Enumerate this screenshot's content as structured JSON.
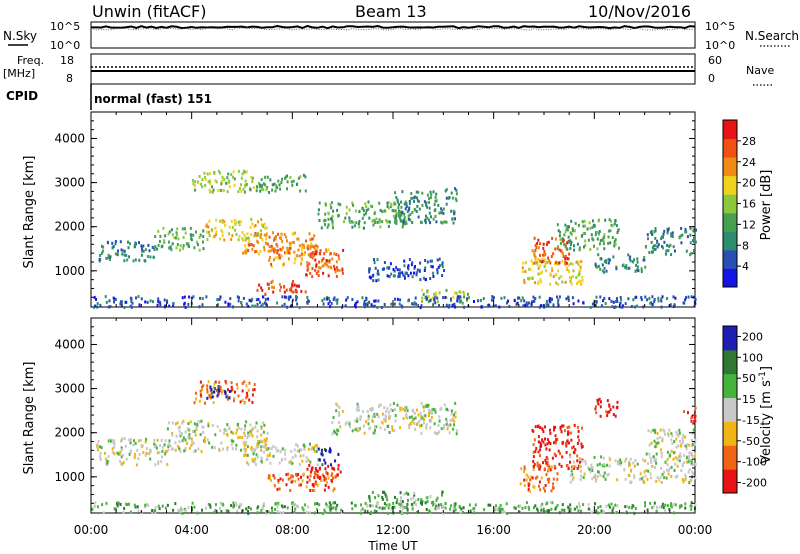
{
  "header": {
    "title": "Unwin (fitACF)",
    "beam": "Beam 13",
    "date": "10/Nov/2016"
  },
  "top_panels": {
    "nsky_label": "N.Sky",
    "nsky_tick_top": "10^5",
    "nsky_tick_bottom": "10^0",
    "nsearch_label": "N.Search",
    "freq_label": "Freq.",
    "freq_unit": "[MHz]",
    "freq_tick_top": "18",
    "freq_tick_bottom": "8",
    "nave_label": "Nave",
    "nave_tick_top": "60",
    "nave_tick_bottom": "0",
    "cpid_label": "CPID",
    "cpid_value": "normal (fast) 151"
  },
  "colors": {
    "power": [
      "#1414e6",
      "#2850b4",
      "#2e8c6e",
      "#46a050",
      "#8cc83c",
      "#f0d21e",
      "#f08c14",
      "#f05014",
      "#e61414"
    ],
    "velocity": [
      "#e61414",
      "#f06414",
      "#f0b414",
      "#c8c8c8",
      "#46b43c",
      "#2e7832",
      "#1e1eb4"
    ]
  },
  "chart_data": [
    {
      "type": "heatmap",
      "name": "power",
      "ylabel": "Slant Range [km]",
      "ylim": [
        180,
        4600
      ],
      "y_ticks": [
        "1000",
        "2000",
        "3000",
        "4000"
      ],
      "xlim_hours": [
        0,
        24
      ],
      "colorbar": {
        "label": "Power [dB]",
        "range": [
          0,
          32
        ],
        "ticks": [
          "4",
          "8",
          "12",
          "16",
          "20",
          "24",
          "28"
        ]
      },
      "features": [
        {
          "t": [
            0.2,
            2.5
          ],
          "r": [
            1250,
            1700
          ],
          "v": 8
        },
        {
          "t": [
            2.5,
            4.5
          ],
          "r": [
            1500,
            2000
          ],
          "v": 12
        },
        {
          "t": [
            4.5,
            7.0
          ],
          "r": [
            1700,
            2200
          ],
          "v": 18
        },
        {
          "t": [
            6.0,
            9.0
          ],
          "r": [
            1400,
            1900
          ],
          "v": 24
        },
        {
          "t": [
            7.0,
            9.5
          ],
          "r": [
            1100,
            1600
          ],
          "v": 22
        },
        {
          "t": [
            6.5,
            8.5
          ],
          "r": [
            500,
            800
          ],
          "v": 28
        },
        {
          "t": [
            8.5,
            10.0
          ],
          "r": [
            900,
            1500
          ],
          "v": 26
        },
        {
          "t": [
            4.0,
            6.5
          ],
          "r": [
            2800,
            3300
          ],
          "v": 16
        },
        {
          "t": [
            6.5,
            8.5
          ],
          "r": [
            2800,
            3200
          ],
          "v": 12
        },
        {
          "t": [
            9.0,
            12.5
          ],
          "r": [
            2000,
            2600
          ],
          "v": 12
        },
        {
          "t": [
            12.0,
            14.5
          ],
          "r": [
            2100,
            2900
          ],
          "v": 10
        },
        {
          "t": [
            11.0,
            14.0
          ],
          "r": [
            800,
            1300
          ],
          "v": 6
        },
        {
          "t": [
            13.0,
            15.0
          ],
          "r": [
            300,
            600
          ],
          "v": 16
        },
        {
          "t": [
            17.0,
            19.5
          ],
          "r": [
            700,
            1300
          ],
          "v": 18
        },
        {
          "t": [
            17.5,
            19.0
          ],
          "r": [
            1200,
            1800
          ],
          "v": 26
        },
        {
          "t": [
            18.5,
            21.0
          ],
          "r": [
            1500,
            2200
          ],
          "v": 12
        },
        {
          "t": [
            20.0,
            22.0
          ],
          "r": [
            1000,
            1400
          ],
          "v": 10
        },
        {
          "t": [
            22.0,
            24.0
          ],
          "r": [
            1400,
            2000
          ],
          "v": 8
        },
        {
          "t": [
            0.0,
            24.0
          ],
          "r": [
            200,
            450
          ],
          "v": 6
        }
      ]
    },
    {
      "type": "heatmap",
      "name": "velocity",
      "ylabel": "Slant Range [km]",
      "xlabel": "Time UT",
      "ylim": [
        180,
        4600
      ],
      "y_ticks": [
        "1000",
        "2000",
        "3000",
        "4000"
      ],
      "x_ticks": [
        "00:00",
        "04:00",
        "08:00",
        "12:00",
        "16:00",
        "20:00",
        "00:00"
      ],
      "xlim_hours": [
        0,
        24
      ],
      "colorbar": {
        "label": "Velocity [m s^-1]",
        "ticks": [
          "200",
          "100",
          "50",
          "15",
          "-15",
          "-50",
          "-100",
          "-200"
        ]
      },
      "features": [
        {
          "t": [
            0.2,
            3.0
          ],
          "r": [
            1300,
            1900
          ],
          "v": 0
        },
        {
          "t": [
            3.0,
            7.0
          ],
          "r": [
            1600,
            2300
          ],
          "v": 0
        },
        {
          "t": [
            6.0,
            9.0
          ],
          "r": [
            1300,
            1800
          ],
          "v": 0
        },
        {
          "t": [
            7.0,
            9.8
          ],
          "r": [
            700,
            1100
          ],
          "v": -60
        },
        {
          "t": [
            8.5,
            10.0
          ],
          "r": [
            900,
            1300
          ],
          "v": -150
        },
        {
          "t": [
            4.0,
            6.5
          ],
          "r": [
            2700,
            3200
          ],
          "v": -60
        },
        {
          "t": [
            4.5,
            5.5
          ],
          "r": [
            2800,
            3100
          ],
          "v": 150
        },
        {
          "t": [
            9.0,
            9.8
          ],
          "r": [
            1300,
            1700
          ],
          "v": 200
        },
        {
          "t": [
            9.5,
            14.5
          ],
          "r": [
            2000,
            2700
          ],
          "v": 0
        },
        {
          "t": [
            11.0,
            14.0
          ],
          "r": [
            300,
            700
          ],
          "v": 40
        },
        {
          "t": [
            17.0,
            18.5
          ],
          "r": [
            700,
            1300
          ],
          "v": -80
        },
        {
          "t": [
            17.5,
            19.5
          ],
          "r": [
            1200,
            2200
          ],
          "v": -150
        },
        {
          "t": [
            19.0,
            24.0
          ],
          "r": [
            900,
            1500
          ],
          "v": 0
        },
        {
          "t": [
            20.0,
            21.0
          ],
          "r": [
            2400,
            2800
          ],
          "v": -200
        },
        {
          "t": [
            23.5,
            24.0
          ],
          "r": [
            2200,
            2600
          ],
          "v": -200
        },
        {
          "t": [
            22.0,
            24.0
          ],
          "r": [
            1500,
            2100
          ],
          "v": 0
        },
        {
          "t": [
            0.0,
            24.0
          ],
          "r": [
            200,
            450
          ],
          "v": 30
        }
      ]
    }
  ]
}
